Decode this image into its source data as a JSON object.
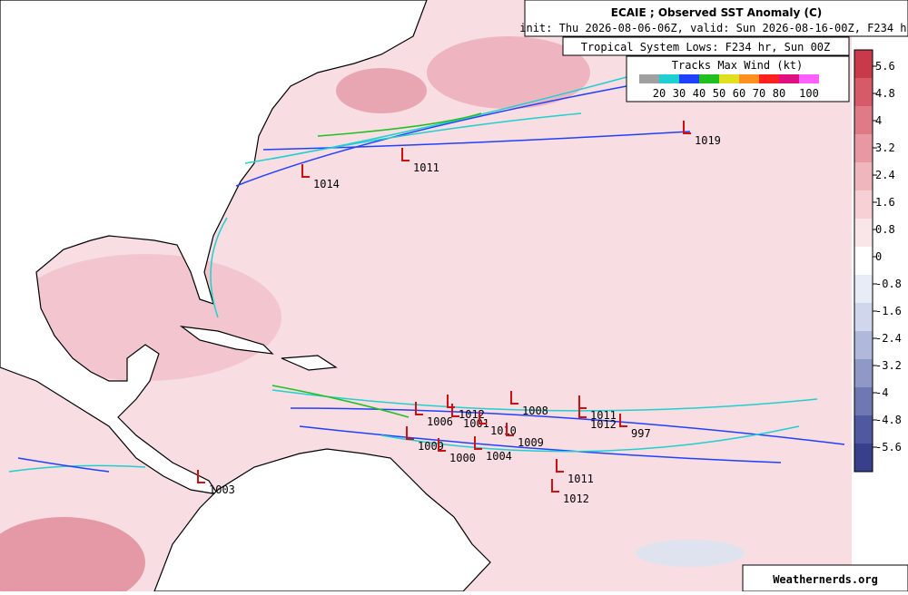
{
  "title": "ECAIE ; Observed SST Anomaly (C)",
  "init_line": "init: Thu 2026-08-06-06Z, valid: Sun 2026-08-16-00Z, F234 hr",
  "lows_title": "Tropical System Lows: F234 hr, Sun 00Z",
  "legend": {
    "title": "Tracks Max Wind (kt)",
    "labels": [
      20,
      30,
      40,
      50,
      60,
      70,
      80,
      100
    ],
    "colors": [
      "#a0a0a0",
      "#20d0d0",
      "#2040ff",
      "#20c020",
      "#e0e020",
      "#ff9020",
      "#ff2020",
      "#e01080",
      "#ff60ff"
    ]
  },
  "colorbar": {
    "ticks": [
      5.6,
      4.8,
      4,
      3.2,
      2.4,
      1.6,
      0.8,
      0,
      -0.8,
      -1.6,
      -2.4,
      -3.2,
      -4,
      -4.8,
      -5.6
    ],
    "colors": [
      "#c83a4a",
      "#d65a68",
      "#e07a86",
      "#e898a2",
      "#f0b6bd",
      "#f6d0d4",
      "#fae6e8",
      "#ffffff",
      "#e8ecf6",
      "#d0d6ec",
      "#b0b8dc",
      "#9098c8",
      "#7078b4",
      "#5058a0",
      "#38408c"
    ]
  },
  "lows": [
    1019,
    1011,
    1014,
    1006,
    1012,
    1001,
    1008,
    1011,
    1012,
    997,
    1010,
    1009,
    1009,
    1000,
    1004,
    1011,
    1012,
    1003
  ],
  "credit": "Weathernerds.org"
}
